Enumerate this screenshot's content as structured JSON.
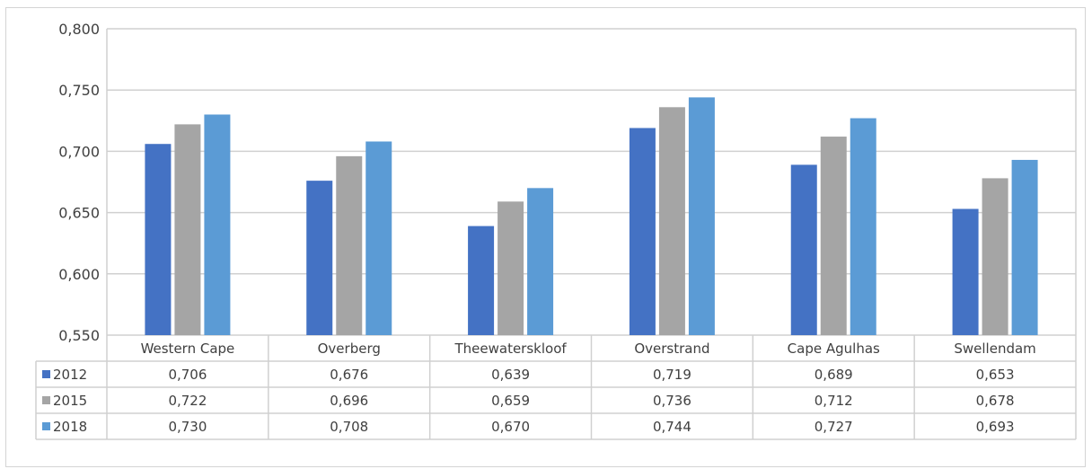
{
  "chart_data": {
    "type": "bar",
    "categories": [
      "Western Cape",
      "Overberg",
      "Theewaterskloof",
      "Overstrand",
      "Cape Agulhas",
      "Swellendam"
    ],
    "series": [
      {
        "name": "2012",
        "color": "#4472c4",
        "values": [
          0.706,
          0.676,
          0.639,
          0.719,
          0.689,
          0.653
        ],
        "labels": [
          "0,706",
          "0,676",
          "0,639",
          "0,719",
          "0,689",
          "0,653"
        ]
      },
      {
        "name": "2015",
        "color": "#a5a5a5",
        "values": [
          0.722,
          0.696,
          0.659,
          0.736,
          0.712,
          0.678
        ],
        "labels": [
          "0,722",
          "0,696",
          "0,659",
          "0,736",
          "0,712",
          "0,678"
        ]
      },
      {
        "name": "2018",
        "color": "#5b9bd5",
        "values": [
          0.73,
          0.708,
          0.67,
          0.744,
          0.727,
          0.693
        ],
        "labels": [
          "0,730",
          "0,708",
          "0,670",
          "0,744",
          "0,727",
          "0,693"
        ]
      }
    ],
    "ylim": [
      0.55,
      0.8
    ],
    "yticks": [
      0.55,
      0.6,
      0.65,
      0.7,
      0.75,
      0.8
    ],
    "ytick_labels": [
      "0,550",
      "0,600",
      "0,650",
      "0,700",
      "0,750",
      "0,800"
    ],
    "grid": true,
    "legend": "data-table",
    "title": "",
    "xlabel": "",
    "ylabel": ""
  }
}
